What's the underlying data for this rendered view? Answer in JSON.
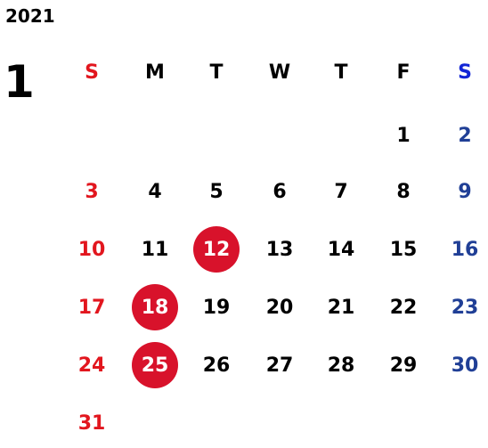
{
  "calendar": {
    "year": "2021",
    "month": "1",
    "weekdays": [
      "S",
      "M",
      "T",
      "W",
      "T",
      "F",
      "S"
    ],
    "weeks": [
      [
        "",
        "",
        "",
        "",
        "",
        "1",
        "2"
      ],
      [
        "3",
        "4",
        "5",
        "6",
        "7",
        "8",
        "9"
      ],
      [
        "10",
        "11",
        "12",
        "13",
        "14",
        "15",
        "16"
      ],
      [
        "17",
        "18",
        "19",
        "20",
        "21",
        "22",
        "23"
      ],
      [
        "24",
        "25",
        "26",
        "27",
        "28",
        "29",
        "30"
      ],
      [
        "31",
        "",
        "",
        "",
        "",
        "",
        ""
      ]
    ],
    "highlighted_days": [
      "12",
      "18",
      "25"
    ]
  },
  "colors": {
    "text": "#000000",
    "sunday": "#e2161e",
    "saturday_header": "#1326d6",
    "saturday": "#203f96",
    "highlight_fill": "#d8122b",
    "highlight_text": "#ffffff"
  }
}
